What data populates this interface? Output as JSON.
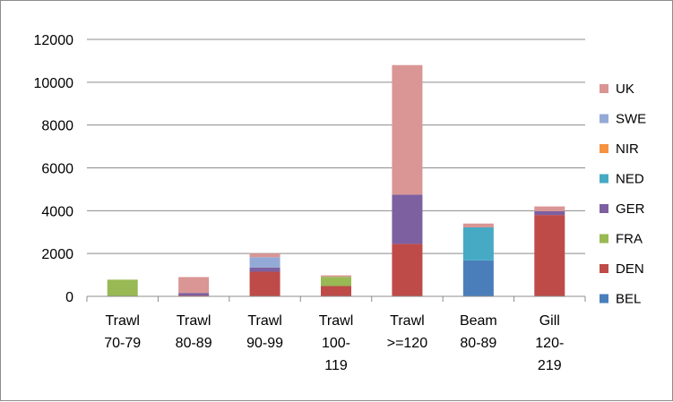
{
  "chart_data": {
    "type": "bar",
    "stacked": true,
    "categories": [
      [
        "Trawl",
        "70-79"
      ],
      [
        "Trawl",
        "80-89"
      ],
      [
        "Trawl",
        "90-99"
      ],
      [
        "Trawl",
        "100-",
        "119"
      ],
      [
        "Trawl",
        ">=120"
      ],
      [
        "Beam",
        "80-89"
      ],
      [
        "Gill",
        "120-",
        "219"
      ]
    ],
    "ylim": [
      0,
      12000
    ],
    "yticks": [
      0,
      2000,
      4000,
      6000,
      8000,
      10000,
      12000
    ],
    "ytick_labels": [
      "0",
      "2000",
      "4000",
      "6000",
      "8000",
      "10000",
      "12000"
    ],
    "grid": true,
    "legend_position": "right",
    "series": [
      {
        "name": "BEL",
        "color": "#4a7ebb",
        "values": [
          0,
          0,
          0,
          0,
          0,
          1680,
          0
        ]
      },
      {
        "name": "DEN",
        "color": "#be4b48",
        "values": [
          0,
          40,
          1150,
          480,
          2450,
          0,
          3800
        ]
      },
      {
        "name": "FRA",
        "color": "#98b954",
        "values": [
          780,
          0,
          0,
          430,
          0,
          0,
          0
        ]
      },
      {
        "name": "GER",
        "color": "#7d60a0",
        "values": [
          0,
          120,
          200,
          0,
          2300,
          0,
          180
        ]
      },
      {
        "name": "NED",
        "color": "#46aac5",
        "values": [
          0,
          0,
          0,
          0,
          0,
          1540,
          0
        ]
      },
      {
        "name": "NIR",
        "color": "#f69240",
        "values": [
          0,
          0,
          0,
          0,
          0,
          0,
          0
        ]
      },
      {
        "name": "SWE",
        "color": "#94aad6",
        "values": [
          0,
          0,
          480,
          0,
          0,
          0,
          0
        ]
      },
      {
        "name": "UK",
        "color": "#d99694",
        "values": [
          0,
          740,
          170,
          70,
          6050,
          180,
          220
        ]
      }
    ]
  }
}
